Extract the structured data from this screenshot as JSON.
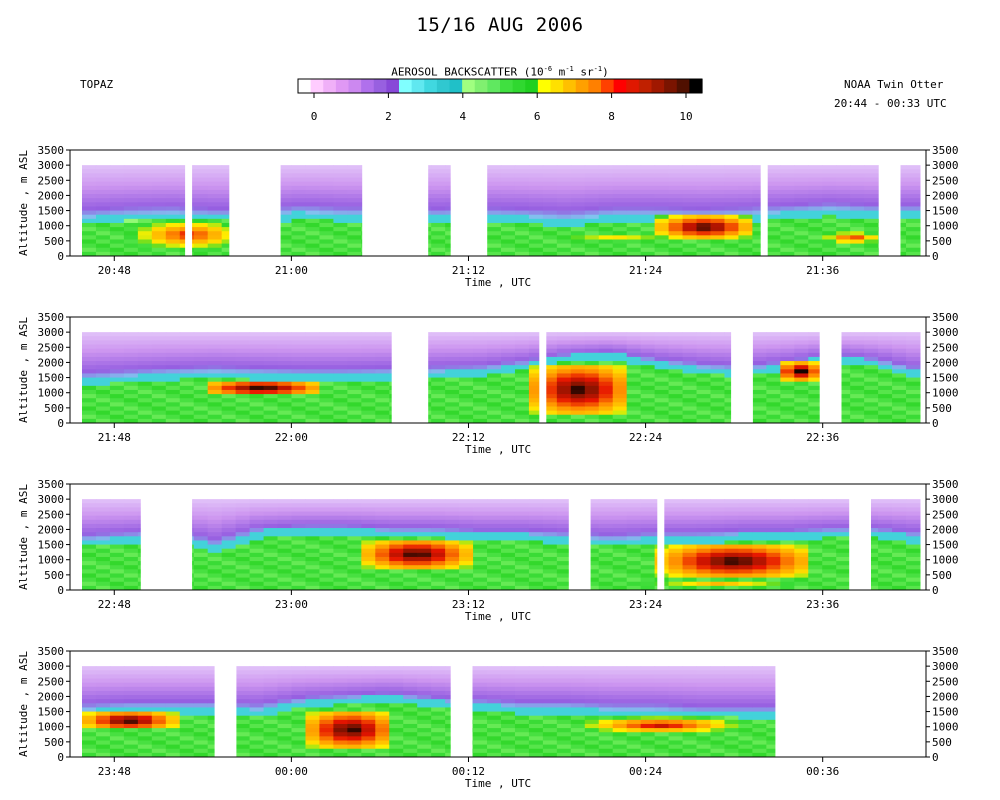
{
  "header": {
    "title": "15/16 AUG 2006",
    "left_label": "TOPAZ",
    "platform": "NOAA Twin Otter",
    "time_range": "20:44 - 00:33 UTC"
  },
  "colorbar": {
    "title_prefix": "AEROSOL BACKSCATTER (10",
    "title_exp1": "-6",
    "title_mid1": " m",
    "title_exp2": "-1",
    "title_mid2": " sr",
    "title_exp3": "-1",
    "title_suffix": ")",
    "ticks": [
      "0",
      "2",
      "4",
      "6",
      "8",
      "10"
    ],
    "colors": [
      "#ffffff",
      "#ffccff",
      "#f0b0f8",
      "#e098f4",
      "#cc88f0",
      "#b070ec",
      "#9860e0",
      "#8848d8",
      "#80ffff",
      "#60e8f0",
      "#40d8e0",
      "#30c8d0",
      "#20c0c8",
      "#a0ff80",
      "#80f070",
      "#60e860",
      "#40e040",
      "#30d830",
      "#20d020",
      "#ffff00",
      "#ffe000",
      "#ffc000",
      "#ffa000",
      "#ff8000",
      "#ff4000",
      "#ff0000",
      "#e01800",
      "#c02000",
      "#a01800",
      "#7a1400",
      "#501000",
      "#000000"
    ]
  },
  "axes": {
    "ylabel": "Altitude , m ASL",
    "xlabel": "Time , UTC",
    "yticks": [
      "0",
      "500",
      "1000",
      "1500",
      "2000",
      "2500",
      "3000",
      "3500"
    ]
  },
  "chart_data": [
    {
      "type": "heatmap",
      "panel": 1,
      "xlabel": "Time , UTC",
      "ylabel": "Altitude , m ASL",
      "ylim": [
        0,
        3500
      ],
      "xlim_minutes_utc": [
        1245,
        1303
      ],
      "xticks": [
        "20:48",
        "21:00",
        "21:12",
        "21:24",
        "21:36"
      ],
      "data_gaps_utc": [
        [
          "20:53",
          "20:53"
        ],
        [
          "20:56",
          "20:59"
        ],
        [
          "21:05",
          "21:09"
        ],
        [
          "21:11",
          "21:13"
        ],
        [
          "21:32",
          "21:32"
        ],
        [
          "21:40",
          "21:41"
        ]
      ],
      "data_top_m": 3000,
      "boundary_layer_top_m": [
        1100,
        1200,
        1250,
        1150,
        1150,
        1300,
        1200,
        1250,
        1150,
        1200,
        1150,
        1050,
        1200,
        1200,
        1150,
        1200,
        1300,
        1400,
        1300,
        1300
      ],
      "aerosol_layers": [
        {
          "start": "20:49",
          "end": "20:57",
          "bottom_m": 200,
          "top_m": 1200,
          "peak_value": 8.5
        },
        {
          "start": "21:12",
          "end": "21:32",
          "bottom_m": 300,
          "top_m": 900,
          "peak_value": 6.5
        },
        {
          "start": "21:25",
          "end": "21:31",
          "bottom_m": 600,
          "top_m": 1300,
          "peak_value": 10
        },
        {
          "start": "21:36",
          "end": "21:40",
          "bottom_m": 400,
          "top_m": 800,
          "peak_value": 8.5
        }
      ]
    },
    {
      "type": "heatmap",
      "panel": 2,
      "xlabel": "Time , UTC",
      "ylabel": "Altitude , m ASL",
      "ylim": [
        0,
        3500
      ],
      "xlim_minutes_utc": [
        1305,
        1363
      ],
      "xticks": [
        "21:48",
        "22:00",
        "22:12",
        "22:24",
        "22:36"
      ],
      "data_gaps_utc": [
        [
          "22:07",
          "22:09"
        ],
        [
          "22:17",
          "22:17"
        ],
        [
          "22:30",
          "22:31"
        ],
        [
          "22:36",
          "22:37"
        ]
      ],
      "data_top_m": 3000,
      "boundary_layer_top_m": [
        1300,
        1400,
        1500,
        1550,
        1500,
        1450,
        1450,
        1500,
        1550,
        1600,
        1800,
        2100,
        2200,
        1900,
        1700,
        1600,
        1800,
        2100,
        1900,
        1500
      ],
      "aerosol_layers": [
        {
          "start": "21:54",
          "end": "22:02",
          "bottom_m": 900,
          "top_m": 1400,
          "peak_value": 10
        },
        {
          "start": "22:16",
          "end": "22:23",
          "bottom_m": 300,
          "top_m": 1900,
          "peak_value": 10
        },
        {
          "start": "22:33",
          "end": "22:36",
          "bottom_m": 1400,
          "top_m": 2000,
          "peak_value": 10
        }
      ]
    },
    {
      "type": "heatmap",
      "panel": 3,
      "xlabel": "Time , UTC",
      "ylabel": "Altitude , m ASL",
      "ylim": [
        0,
        3500
      ],
      "xlim_minutes_utc": [
        1365,
        1423
      ],
      "xticks": [
        "22:48",
        "23:00",
        "23:12",
        "23:24",
        "23:36"
      ],
      "data_gaps_utc": [
        [
          "22:50",
          "22:53"
        ],
        [
          "23:19",
          "23:20"
        ],
        [
          "23:25",
          "23:25"
        ],
        [
          "23:38",
          "23:39"
        ]
      ],
      "data_top_m": 3000,
      "boundary_layer_top_m": [
        1500,
        1600,
        1700,
        1300,
        1800,
        1900,
        1900,
        1800,
        1800,
        1700,
        1700,
        1600,
        1500,
        1600,
        1600,
        1700,
        1700,
        1800,
        1800,
        1600
      ],
      "aerosol_layers": [
        {
          "start": "23:05",
          "end": "23:12",
          "bottom_m": 700,
          "top_m": 1650,
          "peak_value": 10
        },
        {
          "start": "23:25",
          "end": "23:35",
          "bottom_m": 400,
          "top_m": 1500,
          "peak_value": 10
        },
        {
          "start": "23:20",
          "end": "23:38",
          "bottom_m": 0,
          "top_m": 400,
          "peak_value": 7
        }
      ]
    },
    {
      "type": "heatmap",
      "panel": 4,
      "xlabel": "Time , UTC",
      "ylabel": "Altitude , m ASL",
      "ylim": [
        0,
        3500
      ],
      "xlim_minutes_utc": [
        1425,
        1483
      ],
      "xticks": [
        "23:48",
        "00:00",
        "00:12",
        "00:24",
        "00:36"
      ],
      "data_gaps_utc": [
        [
          "23:55",
          "23:56"
        ],
        [
          "00:11",
          "00:12"
        ],
        [
          "00:33",
          "00:43"
        ]
      ],
      "data_top_m": 3000,
      "boundary_layer_top_m": [
        1400,
        1500,
        1500,
        1500,
        1400,
        1700,
        1800,
        1900,
        1700,
        1600,
        1500,
        1500,
        1400,
        1400,
        1300,
        1300,
        1300,
        1300,
        1300,
        1300
      ],
      "aerosol_layers": [
        {
          "start": "23:46",
          "end": "23:52",
          "bottom_m": 900,
          "top_m": 1500,
          "peak_value": 10
        },
        {
          "start": "00:01",
          "end": "00:07",
          "bottom_m": 300,
          "top_m": 1500,
          "peak_value": 10
        },
        {
          "start": "00:20",
          "end": "00:30",
          "bottom_m": 800,
          "top_m": 1300,
          "peak_value": 9
        }
      ]
    }
  ]
}
